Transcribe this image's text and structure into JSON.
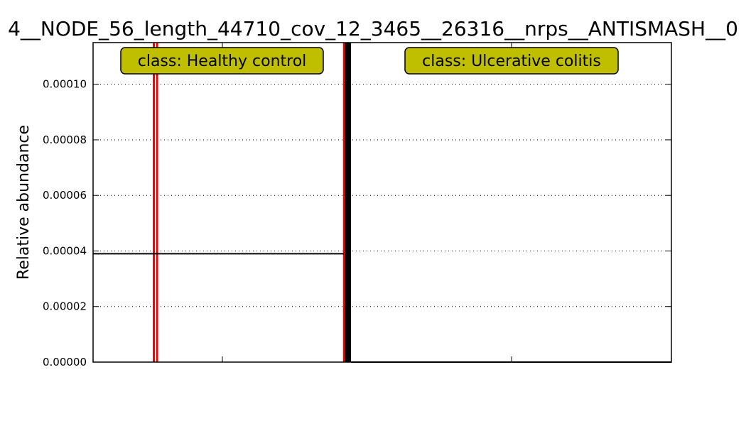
{
  "chart_data": {
    "type": "bar",
    "title": "4__NODE_56_length_44710_cov_12_3465__26316__nrps__ANTISMASH__0",
    "ylabel": "Relative abundance",
    "xlabel": "",
    "ylim": [
      0,
      0.000115
    ],
    "yticks": [
      "0.00000",
      "0.00002",
      "0.00004",
      "0.00006",
      "0.00008",
      "0.00010"
    ],
    "ytick_values": [
      0,
      2e-05,
      4e-05,
      6e-05,
      8e-05,
      0.0001
    ],
    "grid": true,
    "classes": [
      {
        "label": "class: Healthy control",
        "mean": 3.9e-05
      },
      {
        "label": "class: Ulcerative colitis",
        "mean": 0
      }
    ],
    "colors": {
      "class_box": "#bfbf00",
      "sample_line": "#ff0000",
      "separator": "#000000",
      "mean_line": "#000000"
    }
  }
}
